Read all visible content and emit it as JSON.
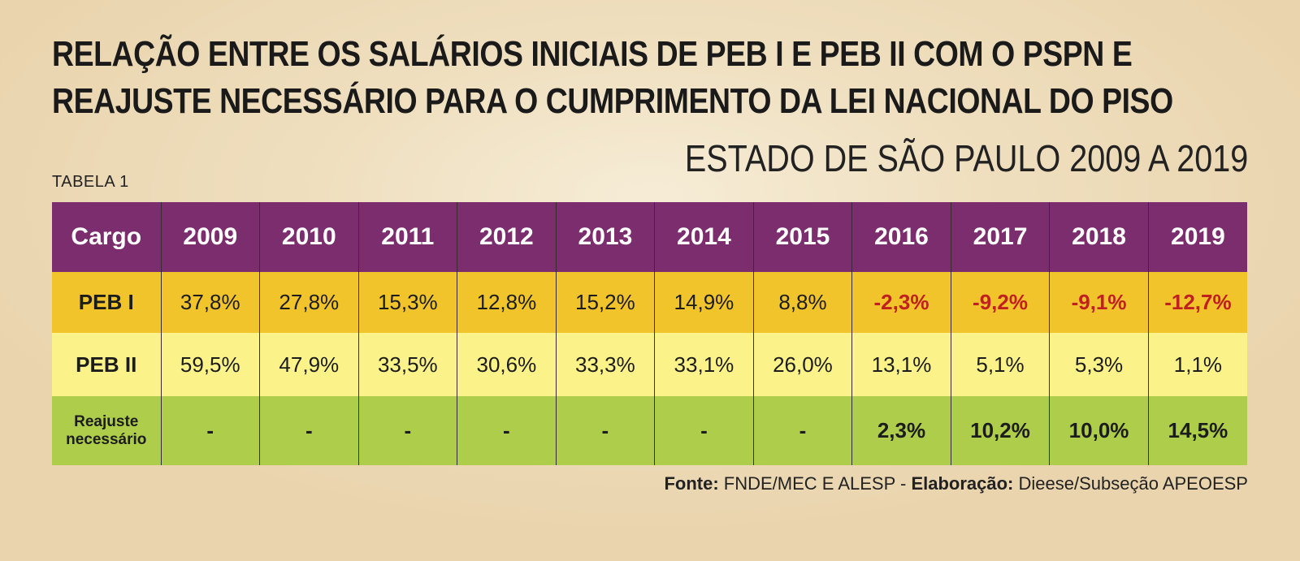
{
  "title": {
    "line1": "RELAÇÃO ENTRE OS SALÁRIOS INICIAIS DE PEB I E PEB II COM O PSPN E",
    "line2": "REAJUSTE NECESSÁRIO PARA O CUMPRIMENTO DA LEI NACIONAL DO PISO"
  },
  "subtitle": "ESTADO DE SÃO PAULO 2009 A 2019",
  "table_label": "TABELA 1",
  "table": {
    "header": [
      "Cargo",
      "2009",
      "2010",
      "2011",
      "2012",
      "2013",
      "2014",
      "2015",
      "2016",
      "2017",
      "2018",
      "2019"
    ],
    "rows": [
      {
        "label": "PEB I",
        "cells": [
          "37,8%",
          "27,8%",
          "15,3%",
          "12,8%",
          "15,2%",
          "14,9%",
          "8,8%",
          "-2,3%",
          "-9,2%",
          "-9,1%",
          "-12,7%"
        ]
      },
      {
        "label": "PEB II",
        "cells": [
          "59,5%",
          "47,9%",
          "33,5%",
          "30,6%",
          "33,3%",
          "33,1%",
          "26,0%",
          "13,1%",
          "5,1%",
          "5,3%",
          "1,1%"
        ]
      },
      {
        "label_line1": "Reajuste",
        "label_line2": "necessário",
        "cells": [
          "-",
          "-",
          "-",
          "-",
          "-",
          "-",
          "-",
          "2,3%",
          "10,2%",
          "10,0%",
          "14,5%"
        ]
      }
    ]
  },
  "source": {
    "label": "Fonte:",
    "text": " FNDE/MEC E ALESP - ",
    "elab_label": "Elaboração:",
    "elab_text": " Dieese/Subseção APEOESP"
  },
  "colors": {
    "header_bg": "#7b2d6e",
    "peb1_bg": "#f1c42c",
    "peb2_bg": "#fbf389",
    "reajuste_bg": "#aecd4b",
    "negative_text": "#c0201f"
  }
}
